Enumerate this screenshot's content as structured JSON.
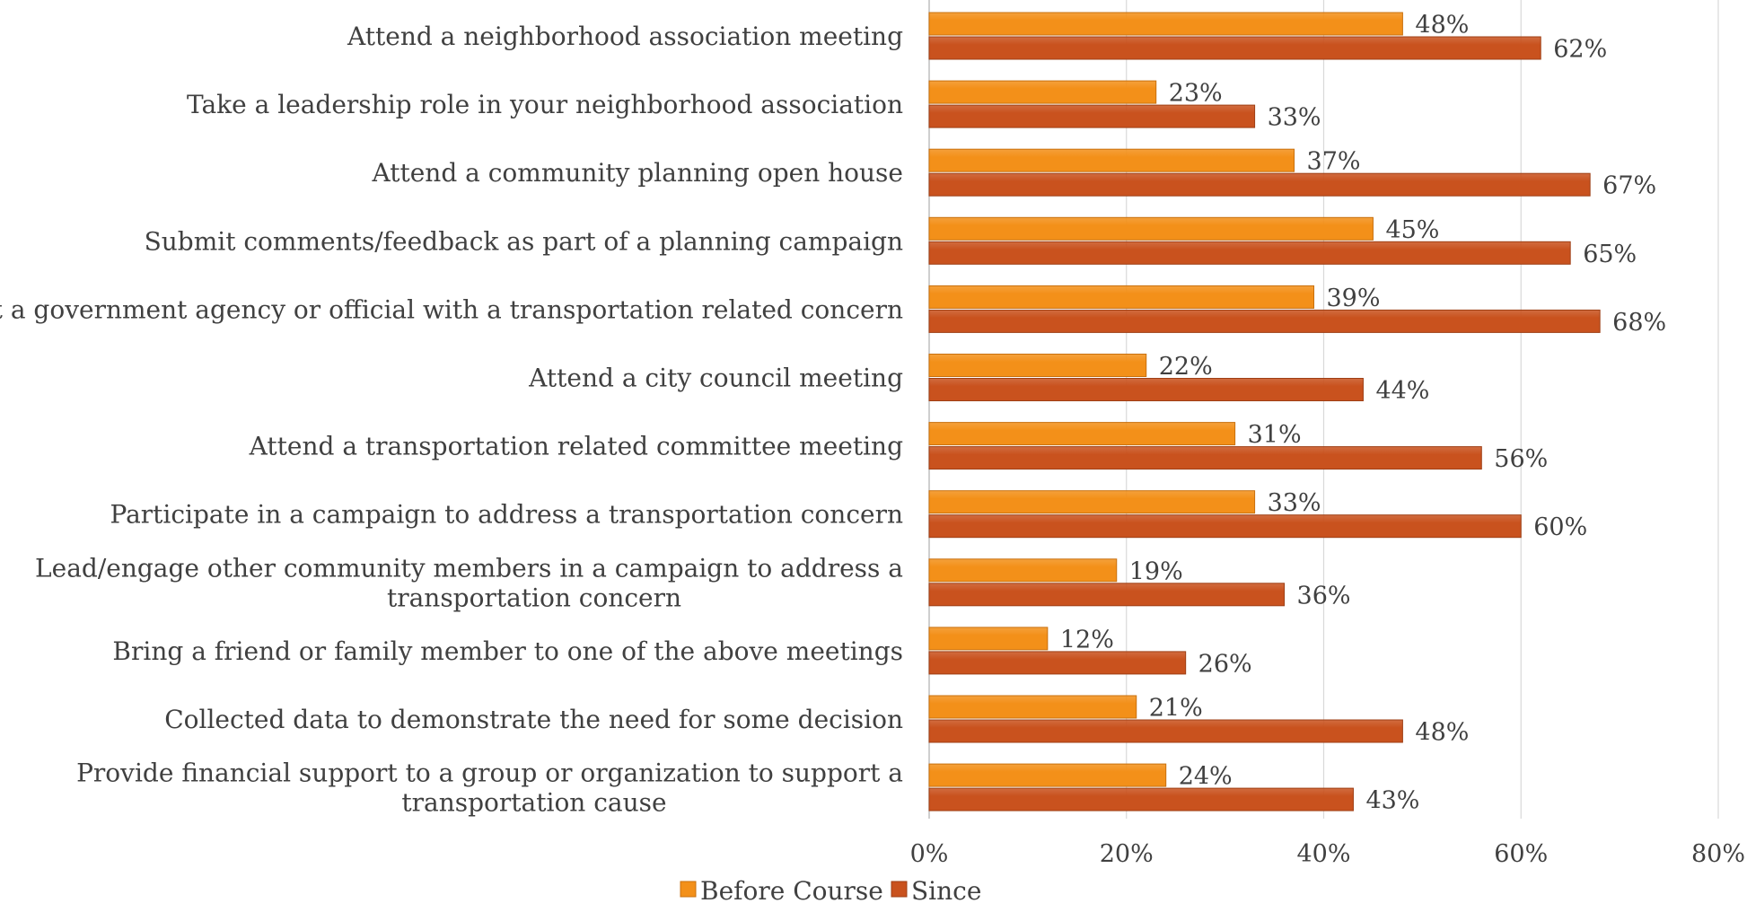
{
  "chart_data": {
    "type": "bar",
    "orientation": "horizontal",
    "title": "",
    "xlabel": "",
    "ylabel": "",
    "categories": [
      [
        "Attend a neighborhood association meeting"
      ],
      [
        "Take a leadership role in your neighborhood association"
      ],
      [
        "Attend a community planning open house"
      ],
      [
        "Submit comments/feedback as part of a planning campaign"
      ],
      [
        "Contact a government agency or official with a transportation related concern"
      ],
      [
        "Attend a city council meeting"
      ],
      [
        "Attend a transportation related committee meeting"
      ],
      [
        "Participate in a campaign to address a transportation concern"
      ],
      [
        "Lead/engage other community members in a campaign to address a",
        "transportation concern"
      ],
      [
        "Bring a friend or family member to one of the above meetings"
      ],
      [
        "Collected data to demonstrate the need for some decision"
      ],
      [
        "Provide financial support to a group or organization to support a",
        "transportation cause"
      ]
    ],
    "series": [
      {
        "name": "Before Course",
        "color": "#F39019",
        "values": [
          48,
          23,
          37,
          45,
          39,
          22,
          31,
          33,
          19,
          12,
          21,
          24
        ],
        "labels": [
          "48%",
          "23%",
          "37%",
          "45%",
          "39%",
          "22%",
          "31%",
          "33%",
          "19%",
          "12%",
          "21%",
          "24%"
        ]
      },
      {
        "name": "Since",
        "color": "#C9521E",
        "values": [
          62,
          33,
          67,
          65,
          68,
          44,
          56,
          60,
          36,
          26,
          48,
          43
        ],
        "labels": [
          "62%",
          "33%",
          "67%",
          "65%",
          "68%",
          "44%",
          "56%",
          "60%",
          "36%",
          "26%",
          "48%",
          "43%"
        ]
      }
    ],
    "xlim": [
      0,
      80
    ],
    "xticks": [
      0,
      20,
      40,
      60,
      80
    ],
    "xtick_labels": [
      "0%",
      "20%",
      "40%",
      "60%",
      "80%"
    ],
    "grid": true,
    "legend_position": "bottom"
  }
}
